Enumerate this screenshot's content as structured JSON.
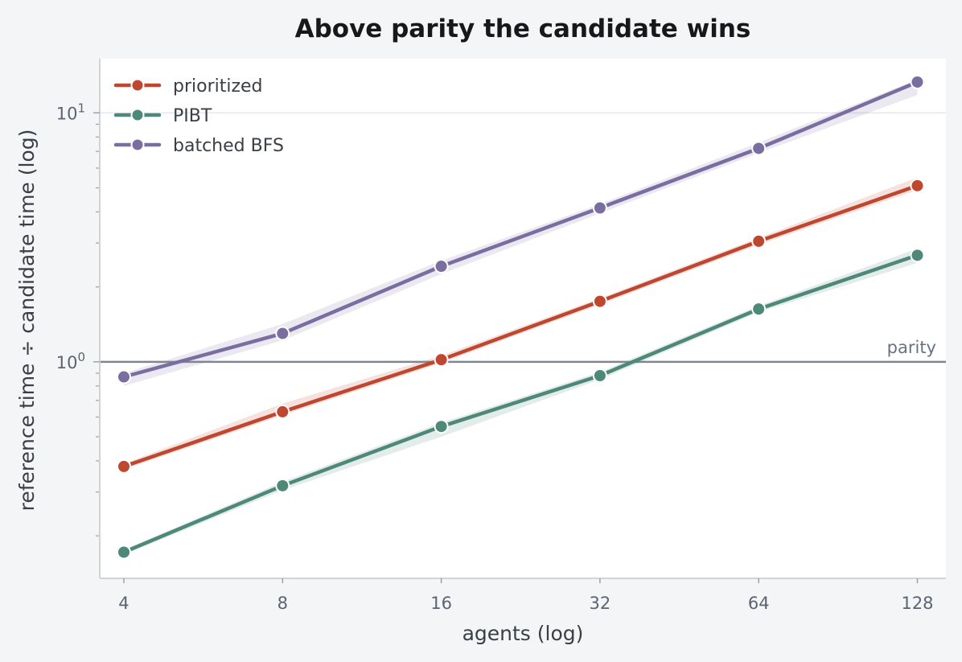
{
  "chart_data": {
    "type": "line",
    "title": "Above parity the candidate wins",
    "xlabel": "agents (log)",
    "ylabel": "reference time ÷ candidate time (log)",
    "x": [
      4,
      8,
      16,
      32,
      64,
      128
    ],
    "x_tick_labels": [
      "4",
      "8",
      "16",
      "32",
      "64",
      "128"
    ],
    "x_scale": "log2",
    "xlim": [
      3.6,
      145
    ],
    "y_scale": "log10",
    "ylim": [
      0.135,
      16.5
    ],
    "y_ticks": [
      {
        "value": 1,
        "base": "10",
        "exp": "0"
      },
      {
        "value": 10,
        "base": "10",
        "exp": "1"
      }
    ],
    "grid": "horizontal major",
    "legend_position": "top-left",
    "reference_line": {
      "value": 1.0,
      "label": "parity",
      "color": "#7f868d"
    },
    "series": [
      {
        "name": "prioritized",
        "color": "#c0472f",
        "values": [
          0.38,
          0.63,
          1.02,
          1.75,
          3.05,
          5.1
        ],
        "band_low": [
          0.37,
          0.61,
          0.99,
          1.7,
          2.95,
          4.9
        ],
        "band_high": [
          0.39,
          0.68,
          1.06,
          1.8,
          3.15,
          5.5
        ]
      },
      {
        "name": "PIBT",
        "color": "#4e8878",
        "values": [
          0.172,
          0.318,
          0.55,
          0.88,
          1.63,
          2.68
        ],
        "band_low": [
          0.168,
          0.305,
          0.5,
          0.85,
          1.58,
          2.5
        ],
        "band_high": [
          0.176,
          0.33,
          0.57,
          0.91,
          1.68,
          2.85
        ]
      },
      {
        "name": "batched BFS",
        "color": "#7a6ea1",
        "values": [
          0.87,
          1.3,
          2.42,
          4.15,
          7.2,
          13.3
        ],
        "band_low": [
          0.8,
          1.22,
          2.25,
          3.95,
          6.9,
          11.8
        ],
        "band_high": [
          0.9,
          1.42,
          2.55,
          4.3,
          7.6,
          13.6
        ]
      }
    ]
  }
}
